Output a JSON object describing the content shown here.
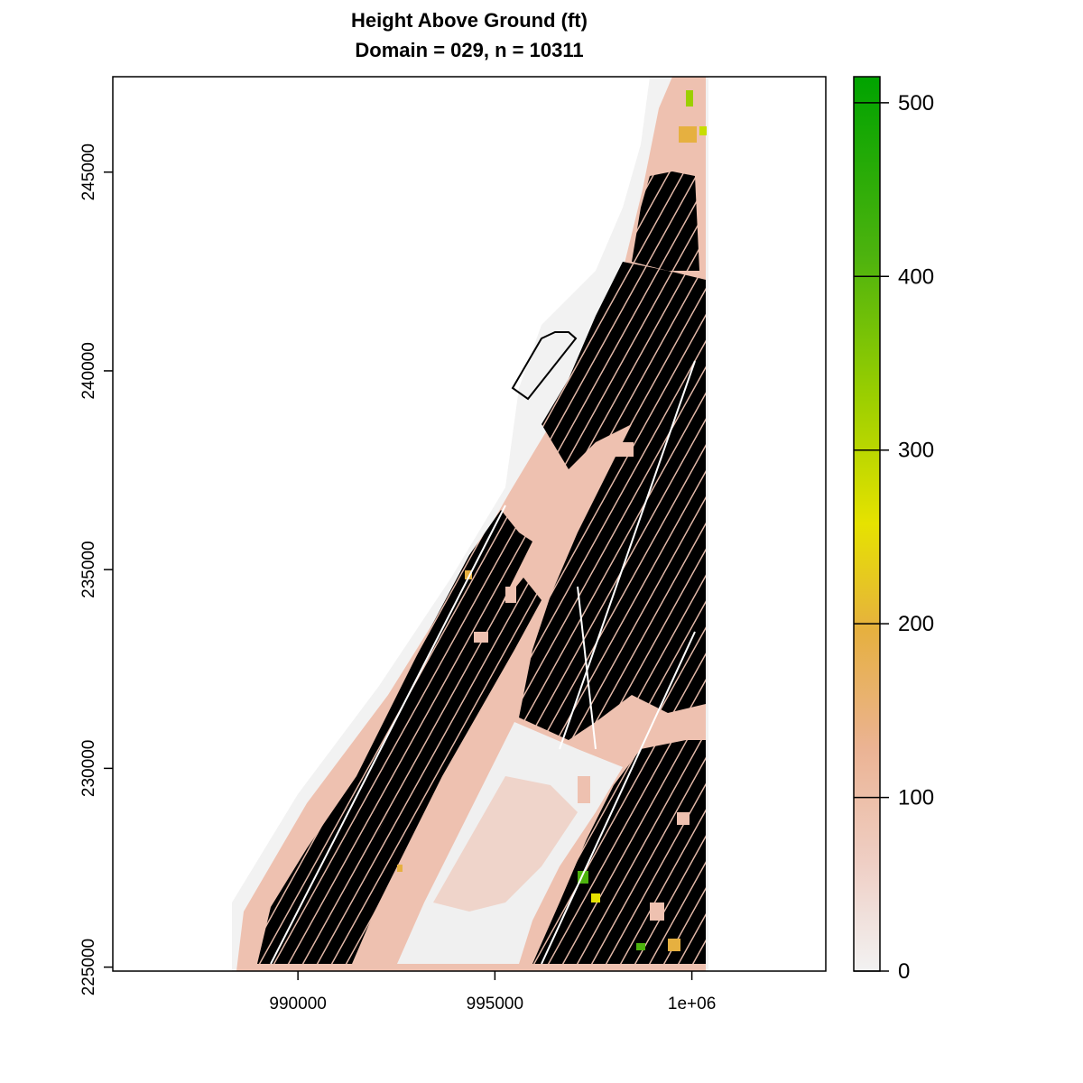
{
  "title": {
    "line1": "Height Above Ground (ft)",
    "line2": "Domain = 029, n = 10311"
  },
  "map": {
    "x_ticks": [
      {
        "value": 990000,
        "label": "990000"
      },
      {
        "value": 995000,
        "label": "995000"
      },
      {
        "value": 1000000,
        "label": "1e+06"
      }
    ],
    "y_ticks": [
      {
        "value": 225000,
        "label": "225000"
      },
      {
        "value": 230000,
        "label": "230000"
      },
      {
        "value": 235000,
        "label": "235000"
      },
      {
        "value": 240000,
        "label": "240000"
      },
      {
        "value": 245000,
        "label": "245000"
      }
    ],
    "xlim": [
      985300,
      1003400
    ],
    "ylim": [
      224900,
      247400
    ],
    "colors": {
      "ground": "#f2f2f2",
      "low": "#eec1b0",
      "building": "#000000",
      "park": "#f0f0f0"
    }
  },
  "colorbar": {
    "range": [
      0,
      515
    ],
    "ticks": [
      {
        "value": 0,
        "label": "0"
      },
      {
        "value": 100,
        "label": "100"
      },
      {
        "value": 200,
        "label": "200"
      },
      {
        "value": 300,
        "label": "300"
      },
      {
        "value": 400,
        "label": "400"
      },
      {
        "value": 500,
        "label": "500"
      }
    ],
    "stops": [
      "#f2f2f2",
      "#efc7b8",
      "#ebb08a",
      "#e6b040",
      "#e6e200",
      "#9ccf00",
      "#4db30e",
      "#00a300"
    ]
  }
}
